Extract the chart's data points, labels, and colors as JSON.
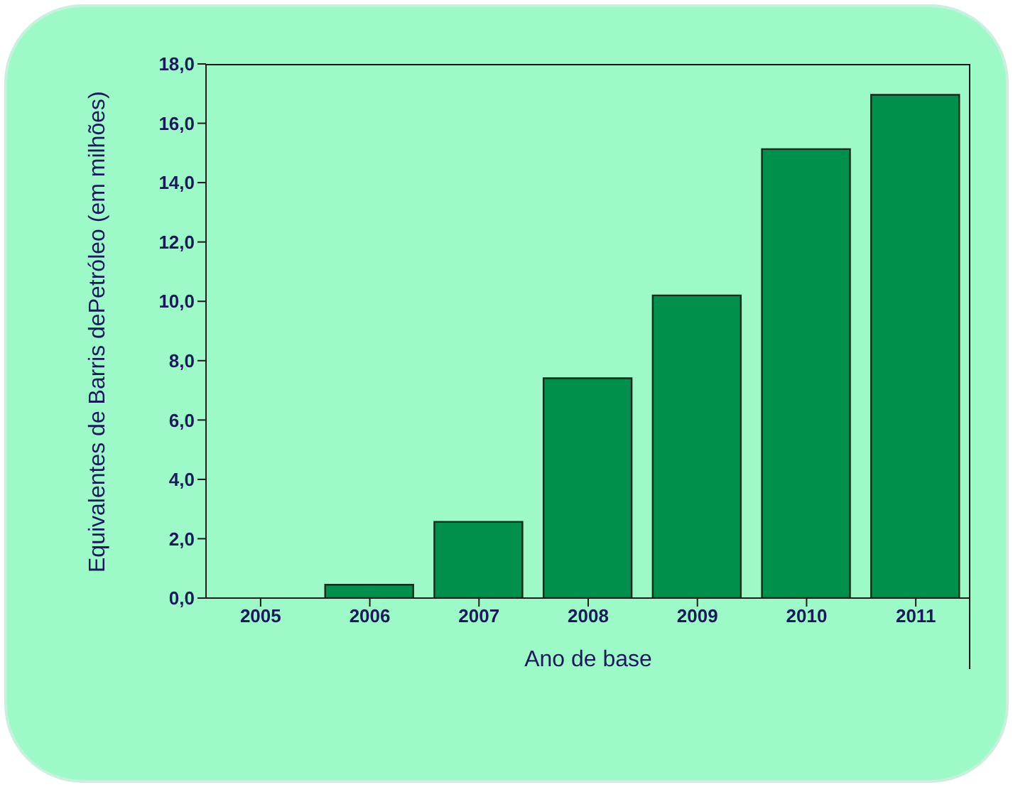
{
  "chart_data": {
    "type": "bar",
    "xlabel": "Ano de base",
    "ylabel": "Equivalentes de Barris dePetróleo (em milhões)",
    "categories": [
      "2005",
      "2006",
      "2007",
      "2008",
      "2009",
      "2010",
      "2011"
    ],
    "values": [
      0,
      0.45,
      2.57,
      7.41,
      10.2,
      15.13,
      16.96
    ],
    "color": "#008f4c",
    "ylim": [
      0,
      18
    ],
    "yticks": [
      {
        "value": 0,
        "label": "0,0"
      },
      {
        "value": 2,
        "label": "2,0"
      },
      {
        "value": 4,
        "label": "4,0"
      },
      {
        "value": 6,
        "label": "6,0"
      },
      {
        "value": 8,
        "label": "8,0"
      },
      {
        "value": 10,
        "label": "10,0"
      },
      {
        "value": 12,
        "label": "12,0"
      },
      {
        "value": 14,
        "label": "14,0"
      },
      {
        "value": 16,
        "label": "16,0"
      },
      {
        "value": 18,
        "label": "18,0"
      }
    ],
    "grid": false
  }
}
